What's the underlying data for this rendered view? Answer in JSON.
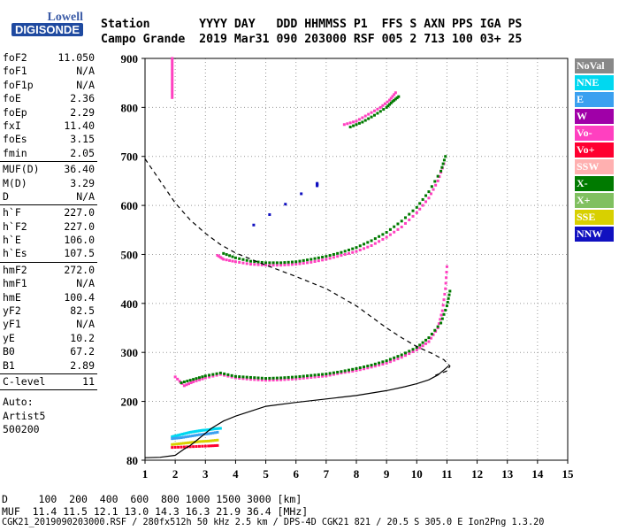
{
  "logo": {
    "top": "Lowell",
    "bottom": "DIGISONDE"
  },
  "header": {
    "line1": "Station       YYYY DAY   DDD HHMMSS P1  FFS S AXN PPS IGA PS",
    "line2": "Campo Grande  2019 Mar31 090 203000 RSF 005 2 713 100 03+ 25"
  },
  "params": [
    {
      "name": "foF2",
      "value": "11.050"
    },
    {
      "name": "foF1",
      "value": "N/A"
    },
    {
      "name": "foF1p",
      "value": "N/A"
    },
    {
      "name": "foE",
      "value": "2.36"
    },
    {
      "name": "foEp",
      "value": "2.29"
    },
    {
      "name": "fxI",
      "value": "11.40"
    },
    {
      "name": "foEs",
      "value": "3.15"
    },
    {
      "name": "fmin",
      "value": "2.05"
    },
    {
      "divider": true
    },
    {
      "name": "MUF(D)",
      "value": "36.40"
    },
    {
      "name": "M(D)",
      "value": "3.29"
    },
    {
      "name": "D",
      "value": "N/A"
    },
    {
      "divider": true
    },
    {
      "name": "h`F",
      "value": "227.0"
    },
    {
      "name": "h`F2",
      "value": "227.0"
    },
    {
      "name": "h`E",
      "value": "106.0"
    },
    {
      "name": "h`Es",
      "value": "107.5"
    },
    {
      "divider": true
    },
    {
      "name": "hmF2",
      "value": "272.0"
    },
    {
      "name": "hmF1",
      "value": "N/A"
    },
    {
      "name": "hmE",
      "value": "100.4"
    },
    {
      "name": "yF2",
      "value": "82.5"
    },
    {
      "name": "yF1",
      "value": "N/A"
    },
    {
      "name": "yE",
      "value": "10.2"
    },
    {
      "name": "B0",
      "value": "67.2"
    },
    {
      "name": "B1",
      "value": "2.89"
    },
    {
      "divider": true
    },
    {
      "name": "C-level",
      "value": "11"
    },
    {
      "divider": true
    }
  ],
  "auto": [
    "Auto:",
    "Artist5",
    "500200"
  ],
  "legend": [
    {
      "label": "NoVal",
      "color": "#888888"
    },
    {
      "label": "NNE",
      "color": "#00d8f0"
    },
    {
      "label": "E",
      "color": "#3aa0f0"
    },
    {
      "label": "W",
      "color": "#a000a8"
    },
    {
      "label": "Vo-",
      "color": "#ff40c0"
    },
    {
      "label": "Vo+",
      "color": "#ff0030"
    },
    {
      "label": "SSW",
      "color": "#ffb0b0"
    },
    {
      "label": "X-",
      "color": "#007a00"
    },
    {
      "label": "X+",
      "color": "#80c060"
    },
    {
      "label": "SSE",
      "color": "#d8d000"
    },
    {
      "label": "NNW",
      "color": "#1010c0"
    }
  ],
  "footer": {
    "line1": "D     100  200  400  600  800 1000 1500 3000 [km]",
    "line2": "MUF  11.4 11.5 12.1 13.0 14.3 16.3 21.9 36.4 [MHz]",
    "line3": "CGK21_2019090203000.RSF / 280fx512h 50 kHz 2.5 km / DPS-4D CGK21 821 / 20.5 S 305.0 E Ion2Png 1.3.20"
  },
  "chart_data": {
    "type": "scatter",
    "xlabel": "",
    "ylabel": "",
    "xlim": [
      1,
      15
    ],
    "ylim": [
      80,
      900
    ],
    "xticks": [
      1,
      2,
      3,
      4,
      5,
      6,
      7,
      8,
      9,
      10,
      11,
      12,
      13,
      14,
      15
    ],
    "yticks": [
      80,
      200,
      300,
      400,
      500,
      600,
      700,
      800,
      900
    ],
    "grid": true,
    "series": [
      {
        "color": "#ff40c0",
        "points": [
          [
            2.0,
            250
          ],
          [
            2.3,
            232
          ],
          [
            2.6,
            240
          ],
          [
            3.0,
            248
          ],
          [
            3.5,
            255
          ],
          [
            4.0,
            248
          ],
          [
            4.5,
            245
          ],
          [
            5.0,
            243
          ],
          [
            5.5,
            244
          ],
          [
            6.0,
            246
          ],
          [
            6.5,
            249
          ],
          [
            7.0,
            252
          ],
          [
            7.5,
            258
          ],
          [
            8.0,
            263
          ],
          [
            8.5,
            270
          ],
          [
            9.0,
            278
          ],
          [
            9.5,
            290
          ],
          [
            10.0,
            305
          ],
          [
            10.4,
            322
          ],
          [
            10.7,
            350
          ],
          [
            10.85,
            385
          ],
          [
            10.95,
            430
          ],
          [
            11.0,
            475
          ]
        ]
      },
      {
        "color": "#007a00",
        "points": [
          [
            2.2,
            238
          ],
          [
            2.6,
            245
          ],
          [
            3.0,
            252
          ],
          [
            3.5,
            258
          ],
          [
            4.0,
            251
          ],
          [
            4.5,
            249
          ],
          [
            5.0,
            247
          ],
          [
            5.5,
            248
          ],
          [
            6.0,
            250
          ],
          [
            6.5,
            253
          ],
          [
            7.0,
            256
          ],
          [
            7.5,
            261
          ],
          [
            8.0,
            267
          ],
          [
            8.5,
            274
          ],
          [
            9.0,
            283
          ],
          [
            9.5,
            295
          ],
          [
            10.0,
            310
          ],
          [
            10.4,
            330
          ],
          [
            10.8,
            360
          ],
          [
            11.0,
            395
          ],
          [
            11.1,
            425
          ]
        ]
      },
      {
        "color": "#ff40c0",
        "points": [
          [
            3.4,
            498
          ],
          [
            3.6,
            490
          ],
          [
            4.0,
            485
          ],
          [
            4.5,
            480
          ],
          [
            5.0,
            478
          ],
          [
            5.5,
            478
          ],
          [
            6.0,
            480
          ],
          [
            6.5,
            484
          ],
          [
            7.0,
            490
          ],
          [
            7.5,
            498
          ],
          [
            8.0,
            506
          ],
          [
            8.5,
            518
          ],
          [
            9.0,
            535
          ],
          [
            9.5,
            556
          ],
          [
            10.0,
            585
          ],
          [
            10.4,
            615
          ],
          [
            10.7,
            650
          ],
          [
            10.9,
            685
          ]
        ]
      },
      {
        "color": "#007a00",
        "points": [
          [
            3.6,
            502
          ],
          [
            4.0,
            493
          ],
          [
            4.5,
            486
          ],
          [
            5.0,
            483
          ],
          [
            5.5,
            483
          ],
          [
            6.0,
            485
          ],
          [
            6.5,
            490
          ],
          [
            7.0,
            496
          ],
          [
            7.5,
            504
          ],
          [
            8.0,
            514
          ],
          [
            8.5,
            528
          ],
          [
            9.0,
            545
          ],
          [
            9.5,
            568
          ],
          [
            10.0,
            596
          ],
          [
            10.4,
            628
          ],
          [
            10.8,
            670
          ],
          [
            10.95,
            700
          ]
        ]
      },
      {
        "color": "#ff40c0",
        "points": [
          [
            7.6,
            765
          ],
          [
            8.0,
            772
          ],
          [
            8.4,
            786
          ],
          [
            8.8,
            800
          ],
          [
            9.1,
            815
          ],
          [
            9.3,
            830
          ]
        ]
      },
      {
        "color": "#007a00",
        "points": [
          [
            7.8,
            760
          ],
          [
            8.2,
            770
          ],
          [
            8.6,
            784
          ],
          [
            9.0,
            800
          ],
          [
            9.2,
            812
          ],
          [
            9.4,
            822
          ]
        ]
      },
      {
        "color": "#ff40c0",
        "points": [
          [
            1.9,
            820
          ],
          [
            1.9,
            840
          ],
          [
            1.9,
            860
          ],
          [
            1.9,
            880
          ],
          [
            1.9,
            900
          ]
        ]
      },
      {
        "color": "#00d8f0",
        "points": [
          [
            1.9,
            128
          ],
          [
            2.1,
            131
          ],
          [
            2.3,
            134
          ],
          [
            2.5,
            137
          ],
          [
            2.7,
            139
          ],
          [
            2.9,
            141
          ],
          [
            3.1,
            142
          ],
          [
            3.3,
            144
          ],
          [
            3.5,
            145
          ]
        ]
      },
      {
        "color": "#3aa0f0",
        "points": [
          [
            1.9,
            124
          ],
          [
            2.2,
            126
          ],
          [
            2.5,
            129
          ],
          [
            2.8,
            132
          ],
          [
            3.1,
            134
          ],
          [
            3.4,
            137
          ]
        ]
      },
      {
        "color": "#d8d000",
        "points": [
          [
            1.9,
            112
          ],
          [
            2.2,
            114
          ],
          [
            2.5,
            116
          ],
          [
            2.8,
            118
          ],
          [
            3.1,
            119
          ],
          [
            3.4,
            121
          ]
        ]
      },
      {
        "color": "#ff0030",
        "points": [
          [
            1.9,
            106
          ],
          [
            2.3,
            107
          ],
          [
            2.7,
            108
          ],
          [
            3.1,
            109
          ],
          [
            3.4,
            110
          ]
        ]
      },
      {
        "color": "#1010c0",
        "points": [
          [
            4.6,
            560
          ],
          [
            6.7,
            645
          ],
          [
            6.7,
            640
          ]
        ]
      }
    ],
    "profile": [
      [
        1.0,
        85
      ],
      [
        1.5,
        86
      ],
      [
        2.0,
        90
      ],
      [
        2.3,
        103
      ],
      [
        2.5,
        110
      ],
      [
        2.8,
        125
      ],
      [
        3.2,
        145
      ],
      [
        3.6,
        160
      ],
      [
        4.0,
        170
      ],
      [
        5.0,
        190
      ],
      [
        6.0,
        198
      ],
      [
        7.0,
        205
      ],
      [
        8.0,
        212
      ],
      [
        9.0,
        222
      ],
      [
        9.6,
        230
      ],
      [
        10.0,
        236
      ],
      [
        10.4,
        244
      ],
      [
        10.7,
        254
      ],
      [
        10.9,
        264
      ],
      [
        11.05,
        272
      ]
    ],
    "muf_curve": [
      [
        1.0,
        695
      ],
      [
        1.5,
        650
      ],
      [
        2.0,
        605
      ],
      [
        2.5,
        570
      ],
      [
        3.0,
        543
      ],
      [
        3.5,
        520
      ],
      [
        4.0,
        503
      ],
      [
        5.0,
        478
      ],
      [
        6.0,
        455
      ],
      [
        7.0,
        430
      ],
      [
        8.0,
        395
      ],
      [
        9.0,
        350
      ],
      [
        9.5,
        330
      ],
      [
        10.0,
        312
      ],
      [
        10.5,
        298
      ],
      [
        10.9,
        285
      ],
      [
        11.1,
        272
      ],
      [
        11.0,
        262
      ],
      [
        10.6,
        253
      ]
    ]
  }
}
